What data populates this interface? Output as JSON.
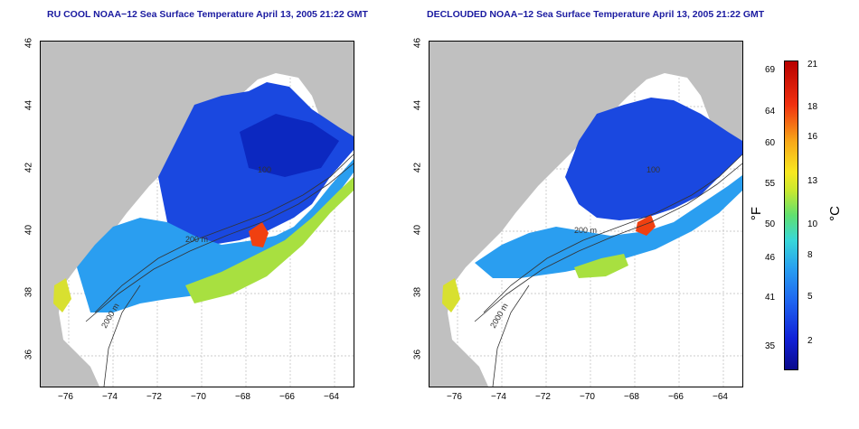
{
  "panels": {
    "left": {
      "title": "RU COOL NOAA−12 Sea Surface Temperature April 13, 2005 21:22 GMT"
    },
    "right": {
      "title": "DECLOUDED NOAA−12 Sea Surface Temperature April 13, 2005 21:22 GMT"
    }
  },
  "axes": {
    "x_ticks": [
      "−76",
      "−74",
      "−72",
      "−70",
      "−68",
      "−66",
      "−64"
    ],
    "y_ticks": [
      "46",
      "44",
      "42",
      "40",
      "38",
      "36"
    ]
  },
  "contours": {
    "label_2000": "2000 m",
    "label_200": "200 m",
    "label_100": "100"
  },
  "colorbar": {
    "f_label": "°F",
    "c_label": "°C",
    "f_ticks": [
      "69",
      "64",
      "60",
      "55",
      "50",
      "46",
      "41",
      "35"
    ],
    "c_ticks": [
      "21",
      "18",
      "16",
      "13",
      "10",
      "8",
      "5",
      "2"
    ]
  },
  "colors": {
    "land": "#c0c0c0",
    "cold": "#1030d8",
    "warm": "#f04010",
    "title": "#1a1aa0"
  }
}
